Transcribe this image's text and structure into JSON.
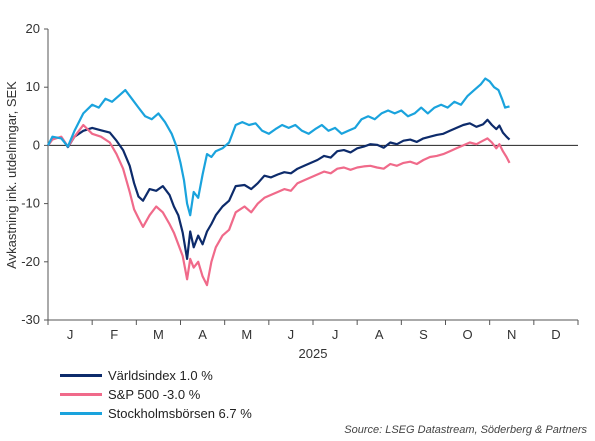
{
  "chart_data": {
    "type": "line",
    "ylabel": "Avkastning ink. utdelningar, SEK",
    "xlabel": "2025",
    "ylim": [
      -30,
      20
    ],
    "yticks": [
      20,
      10,
      0,
      -10,
      -20,
      -30
    ],
    "xlim": [
      0,
      12
    ],
    "month_labels": [
      "J",
      "F",
      "M",
      "A",
      "M",
      "J",
      "J",
      "A",
      "S",
      "O",
      "N",
      "D"
    ],
    "zero_line": true,
    "grid": false,
    "legend_position": "bottom-left",
    "series": [
      {
        "name": "Världsindex 1.0 %",
        "color": "#0d2b6b",
        "points": [
          [
            0.0,
            0
          ],
          [
            0.1,
            1.2
          ],
          [
            0.3,
            1.4
          ],
          [
            0.45,
            -0.3
          ],
          [
            0.6,
            1.5
          ],
          [
            0.8,
            2.5
          ],
          [
            1.0,
            3.0
          ],
          [
            1.2,
            2.6
          ],
          [
            1.4,
            2.2
          ],
          [
            1.55,
            0.8
          ],
          [
            1.7,
            -0.8
          ],
          [
            1.85,
            -3.5
          ],
          [
            1.95,
            -6.5
          ],
          [
            2.05,
            -8.8
          ],
          [
            2.15,
            -9.5
          ],
          [
            2.3,
            -7.5
          ],
          [
            2.45,
            -7.8
          ],
          [
            2.6,
            -7.0
          ],
          [
            2.75,
            -8.5
          ],
          [
            2.85,
            -10.5
          ],
          [
            2.95,
            -12.0
          ],
          [
            3.05,
            -15.0
          ],
          [
            3.15,
            -19.5
          ],
          [
            3.22,
            -14.8
          ],
          [
            3.3,
            -17.5
          ],
          [
            3.4,
            -15.5
          ],
          [
            3.5,
            -17.0
          ],
          [
            3.6,
            -14.8
          ],
          [
            3.7,
            -13.5
          ],
          [
            3.8,
            -12.0
          ],
          [
            3.95,
            -10.5
          ],
          [
            4.1,
            -9.5
          ],
          [
            4.25,
            -7.0
          ],
          [
            4.45,
            -6.8
          ],
          [
            4.6,
            -7.5
          ],
          [
            4.75,
            -6.5
          ],
          [
            4.9,
            -5.2
          ],
          [
            5.05,
            -5.5
          ],
          [
            5.2,
            -5.0
          ],
          [
            5.35,
            -4.6
          ],
          [
            5.5,
            -4.8
          ],
          [
            5.65,
            -4.0
          ],
          [
            5.8,
            -3.5
          ],
          [
            5.95,
            -3.0
          ],
          [
            6.1,
            -2.5
          ],
          [
            6.25,
            -1.8
          ],
          [
            6.4,
            -2.1
          ],
          [
            6.55,
            -1.0
          ],
          [
            6.7,
            -0.8
          ],
          [
            6.85,
            -1.2
          ],
          [
            7.0,
            -0.5
          ],
          [
            7.15,
            -0.2
          ],
          [
            7.3,
            0.2
          ],
          [
            7.45,
            0.1
          ],
          [
            7.6,
            -0.4
          ],
          [
            7.75,
            0.5
          ],
          [
            7.9,
            0.2
          ],
          [
            8.05,
            0.8
          ],
          [
            8.2,
            1.0
          ],
          [
            8.35,
            0.6
          ],
          [
            8.5,
            1.2
          ],
          [
            8.65,
            1.5
          ],
          [
            8.8,
            1.8
          ],
          [
            8.95,
            2.0
          ],
          [
            9.1,
            2.5
          ],
          [
            9.25,
            3.0
          ],
          [
            9.4,
            3.5
          ],
          [
            9.55,
            3.8
          ],
          [
            9.7,
            3.2
          ],
          [
            9.85,
            3.6
          ],
          [
            9.95,
            4.4
          ],
          [
            10.05,
            3.5
          ],
          [
            10.15,
            2.8
          ],
          [
            10.22,
            3.4
          ],
          [
            10.3,
            2.2
          ],
          [
            10.38,
            1.5
          ],
          [
            10.45,
            1.0
          ]
        ]
      },
      {
        "name": "S&P 500 -3.0 %",
        "color": "#f06a8a",
        "points": [
          [
            0.0,
            0
          ],
          [
            0.1,
            1.0
          ],
          [
            0.3,
            1.5
          ],
          [
            0.45,
            -0.2
          ],
          [
            0.6,
            1.5
          ],
          [
            0.8,
            3.5
          ],
          [
            1.0,
            2.0
          ],
          [
            1.2,
            1.5
          ],
          [
            1.4,
            0.5
          ],
          [
            1.55,
            -1.5
          ],
          [
            1.7,
            -4.0
          ],
          [
            1.85,
            -8.0
          ],
          [
            1.95,
            -11.0
          ],
          [
            2.05,
            -12.5
          ],
          [
            2.15,
            -14.0
          ],
          [
            2.3,
            -12.0
          ],
          [
            2.45,
            -10.5
          ],
          [
            2.6,
            -11.5
          ],
          [
            2.75,
            -13.5
          ],
          [
            2.85,
            -15.0
          ],
          [
            2.95,
            -17.0
          ],
          [
            3.05,
            -19.0
          ],
          [
            3.15,
            -23.0
          ],
          [
            3.22,
            -19.5
          ],
          [
            3.3,
            -21.0
          ],
          [
            3.4,
            -20.0
          ],
          [
            3.5,
            -22.5
          ],
          [
            3.6,
            -24.0
          ],
          [
            3.7,
            -20.0
          ],
          [
            3.8,
            -17.5
          ],
          [
            3.95,
            -15.5
          ],
          [
            4.1,
            -14.5
          ],
          [
            4.25,
            -11.5
          ],
          [
            4.45,
            -10.5
          ],
          [
            4.6,
            -11.5
          ],
          [
            4.75,
            -10.0
          ],
          [
            4.9,
            -9.0
          ],
          [
            5.05,
            -8.5
          ],
          [
            5.2,
            -8.0
          ],
          [
            5.35,
            -7.5
          ],
          [
            5.5,
            -7.8
          ],
          [
            5.65,
            -6.5
          ],
          [
            5.8,
            -6.0
          ],
          [
            5.95,
            -5.5
          ],
          [
            6.1,
            -5.0
          ],
          [
            6.25,
            -4.5
          ],
          [
            6.4,
            -4.8
          ],
          [
            6.55,
            -4.0
          ],
          [
            6.7,
            -3.8
          ],
          [
            6.85,
            -4.2
          ],
          [
            7.0,
            -3.8
          ],
          [
            7.15,
            -3.6
          ],
          [
            7.3,
            -3.5
          ],
          [
            7.45,
            -3.8
          ],
          [
            7.6,
            -4.0
          ],
          [
            7.75,
            -3.2
          ],
          [
            7.9,
            -3.5
          ],
          [
            8.05,
            -3.0
          ],
          [
            8.2,
            -2.8
          ],
          [
            8.35,
            -3.2
          ],
          [
            8.5,
            -2.5
          ],
          [
            8.65,
            -2.0
          ],
          [
            8.8,
            -1.8
          ],
          [
            8.95,
            -1.5
          ],
          [
            9.1,
            -1.0
          ],
          [
            9.25,
            -0.5
          ],
          [
            9.4,
            0.0
          ],
          [
            9.55,
            0.5
          ],
          [
            9.7,
            0.2
          ],
          [
            9.85,
            0.8
          ],
          [
            9.95,
            1.2
          ],
          [
            10.05,
            0.5
          ],
          [
            10.15,
            -0.5
          ],
          [
            10.22,
            0.2
          ],
          [
            10.3,
            -1.0
          ],
          [
            10.38,
            -2.0
          ],
          [
            10.45,
            -3.0
          ]
        ]
      },
      {
        "name": "Stockholmsbörsen  6.7 %",
        "color": "#1aa3dd",
        "points": [
          [
            0.0,
            0
          ],
          [
            0.1,
            1.5
          ],
          [
            0.3,
            1.2
          ],
          [
            0.45,
            -0.2
          ],
          [
            0.6,
            2.5
          ],
          [
            0.8,
            5.5
          ],
          [
            1.0,
            7.0
          ],
          [
            1.15,
            6.5
          ],
          [
            1.3,
            8.0
          ],
          [
            1.45,
            7.5
          ],
          [
            1.6,
            8.5
          ],
          [
            1.75,
            9.5
          ],
          [
            1.9,
            8.0
          ],
          [
            2.05,
            6.5
          ],
          [
            2.2,
            5.0
          ],
          [
            2.35,
            4.5
          ],
          [
            2.5,
            5.5
          ],
          [
            2.65,
            4.0
          ],
          [
            2.8,
            2.0
          ],
          [
            2.9,
            0.0
          ],
          [
            3.0,
            -3.0
          ],
          [
            3.08,
            -6.0
          ],
          [
            3.15,
            -10.0
          ],
          [
            3.22,
            -12.0
          ],
          [
            3.3,
            -8.0
          ],
          [
            3.4,
            -9.0
          ],
          [
            3.5,
            -5.0
          ],
          [
            3.6,
            -1.5
          ],
          [
            3.7,
            -2.0
          ],
          [
            3.8,
            -1.0
          ],
          [
            3.95,
            -0.5
          ],
          [
            4.1,
            0.5
          ],
          [
            4.25,
            3.5
          ],
          [
            4.4,
            4.0
          ],
          [
            4.55,
            3.5
          ],
          [
            4.7,
            3.8
          ],
          [
            4.85,
            2.5
          ],
          [
            5.0,
            2.0
          ],
          [
            5.15,
            2.8
          ],
          [
            5.3,
            3.5
          ],
          [
            5.45,
            3.0
          ],
          [
            5.6,
            3.5
          ],
          [
            5.75,
            2.5
          ],
          [
            5.9,
            2.0
          ],
          [
            6.05,
            2.8
          ],
          [
            6.2,
            3.5
          ],
          [
            6.35,
            2.5
          ],
          [
            6.5,
            3.0
          ],
          [
            6.65,
            2.0
          ],
          [
            6.8,
            2.5
          ],
          [
            6.95,
            3.0
          ],
          [
            7.1,
            4.5
          ],
          [
            7.25,
            5.0
          ],
          [
            7.4,
            4.5
          ],
          [
            7.55,
            5.5
          ],
          [
            7.7,
            6.0
          ],
          [
            7.85,
            5.5
          ],
          [
            8.0,
            6.0
          ],
          [
            8.15,
            5.0
          ],
          [
            8.3,
            5.5
          ],
          [
            8.45,
            6.5
          ],
          [
            8.6,
            5.5
          ],
          [
            8.75,
            6.5
          ],
          [
            8.9,
            7.0
          ],
          [
            9.05,
            6.5
          ],
          [
            9.2,
            7.5
          ],
          [
            9.35,
            7.0
          ],
          [
            9.5,
            8.5
          ],
          [
            9.65,
            9.5
          ],
          [
            9.8,
            10.5
          ],
          [
            9.9,
            11.5
          ],
          [
            10.0,
            11.0
          ],
          [
            10.1,
            10.0
          ],
          [
            10.2,
            9.5
          ],
          [
            10.28,
            8.0
          ],
          [
            10.35,
            6.5
          ],
          [
            10.45,
            6.7
          ]
        ]
      }
    ]
  },
  "source": "Source: LSEG Datastream, Söderberg & Partners"
}
